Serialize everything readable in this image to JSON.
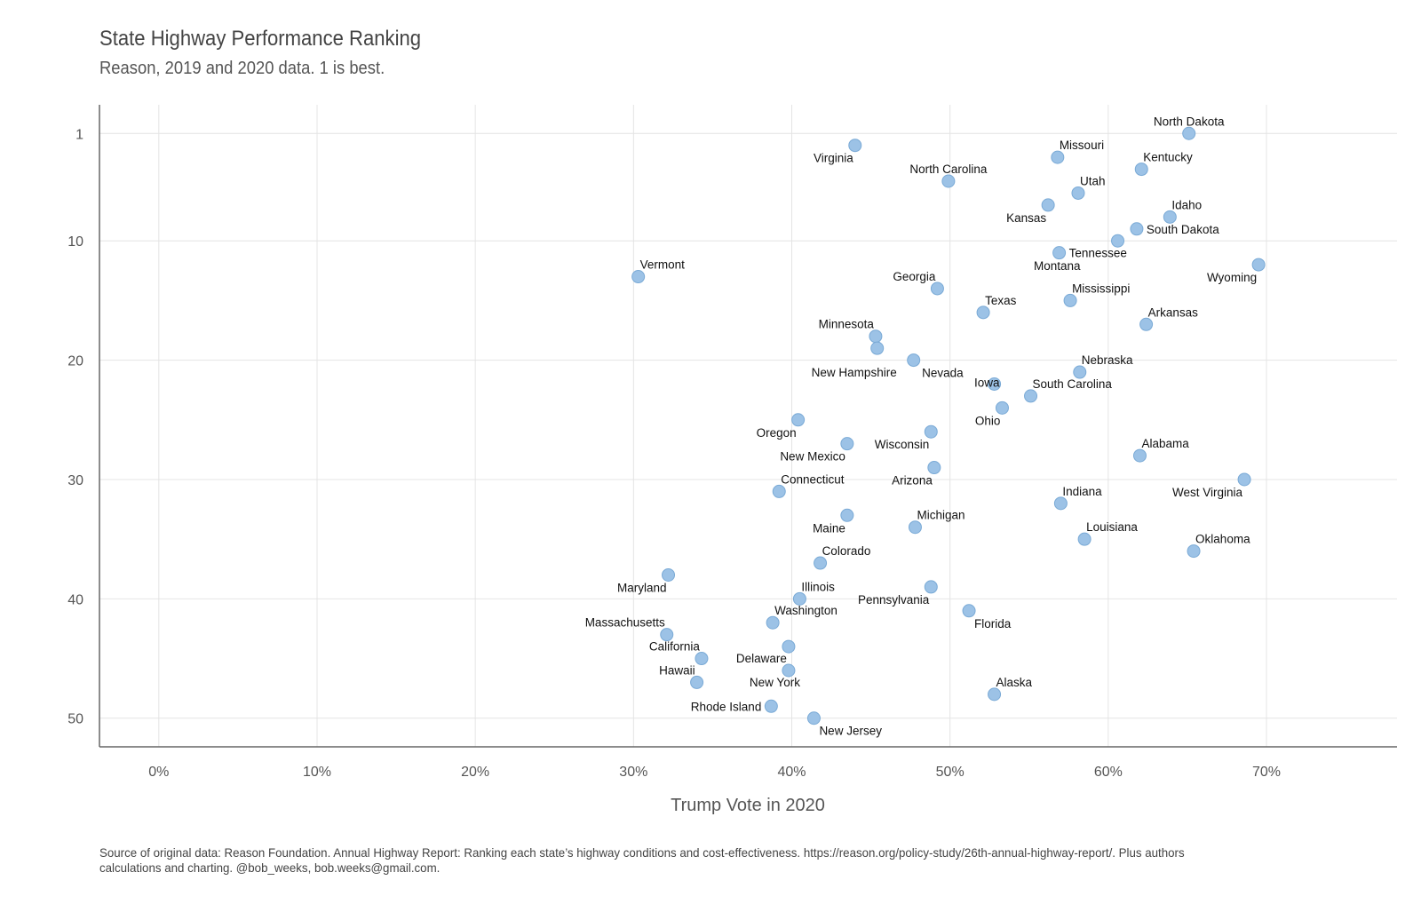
{
  "chart_data": {
    "type": "scatter",
    "title": "State Highway Performance Ranking",
    "subtitle": "Reason, 2019 and 2020 data. 1 is best.",
    "xlabel": "Trump Vote in 2020",
    "ylabel": "",
    "caption": "Source of original data: Reason Foundation. Annual Highway Report: Ranking each state’s highway conditions and cost-effectiveness. https://reason.org/policy-study/26th-annual-highway-report/. Plus authors calculations and charting. @bob_weeks, bob.weeks@gmail.com.",
    "xlim": [
      -0.0375,
      0.7825
    ],
    "ylim": [
      52.4,
      -1.4
    ],
    "x_ticks": [
      0,
      0.1,
      0.2,
      0.3,
      0.4,
      0.5,
      0.6,
      0.7
    ],
    "x_tick_labels": [
      "0%",
      "10%",
      "20%",
      "30%",
      "40%",
      "50%",
      "60%",
      "70%"
    ],
    "y_ticks": [
      1,
      10,
      20,
      30,
      40,
      50
    ],
    "y_tick_labels": [
      "1",
      "10",
      "20",
      "30",
      "40",
      "50"
    ],
    "grid": true,
    "point_color": "#9cc2e6",
    "point_stroke": "#7aaad6",
    "points": [
      {
        "name": "North Dakota",
        "x": 0.651,
        "y": 1,
        "pos": "above"
      },
      {
        "name": "Virginia",
        "x": 0.44,
        "y": 2,
        "pos": "below-left"
      },
      {
        "name": "Missouri",
        "x": 0.568,
        "y": 3,
        "pos": "above-right"
      },
      {
        "name": "Kentucky",
        "x": 0.621,
        "y": 4,
        "pos": "above-right"
      },
      {
        "name": "North Carolina",
        "x": 0.499,
        "y": 5,
        "pos": "above"
      },
      {
        "name": "Utah",
        "x": 0.581,
        "y": 6,
        "pos": "above-right"
      },
      {
        "name": "Kansas",
        "x": 0.562,
        "y": 7,
        "pos": "below-left"
      },
      {
        "name": "Idaho",
        "x": 0.639,
        "y": 8,
        "pos": "above-right"
      },
      {
        "name": "South Dakota",
        "x": 0.618,
        "y": 9,
        "pos": "right"
      },
      {
        "name": "Montana",
        "x": 0.606,
        "y": 10,
        "pos": "far-left"
      },
      {
        "name": "Tennessee",
        "x": 0.569,
        "y": 11,
        "pos": "right"
      },
      {
        "name": "Wyoming",
        "x": 0.695,
        "y": 12,
        "pos": "below-left"
      },
      {
        "name": "Vermont",
        "x": 0.303,
        "y": 13,
        "pos": "above-right"
      },
      {
        "name": "Georgia",
        "x": 0.492,
        "y": 14,
        "pos": "above-left"
      },
      {
        "name": "Mississippi",
        "x": 0.576,
        "y": 15,
        "pos": "above-right"
      },
      {
        "name": "Texas",
        "x": 0.521,
        "y": 16,
        "pos": "above-right"
      },
      {
        "name": "Arkansas",
        "x": 0.624,
        "y": 17,
        "pos": "above-right"
      },
      {
        "name": "Minnesota",
        "x": 0.453,
        "y": 18,
        "pos": "above-left"
      },
      {
        "name": "New Hampshire",
        "x": 0.454,
        "y": 19,
        "pos": "none"
      },
      {
        "name": "Nevada",
        "x": 0.477,
        "y": 20,
        "pos": "nh-nevada"
      },
      {
        "name": "Nebraska",
        "x": 0.582,
        "y": 21,
        "pos": "above-right"
      },
      {
        "name": "Iowa",
        "x": 0.528,
        "y": 22,
        "pos": "left-tight"
      },
      {
        "name": "South Carolina",
        "x": 0.551,
        "y": 23,
        "pos": "above-right"
      },
      {
        "name": "Ohio",
        "x": 0.533,
        "y": 24,
        "pos": "below-left"
      },
      {
        "name": "Oregon",
        "x": 0.404,
        "y": 25,
        "pos": "below-left"
      },
      {
        "name": "Wisconsin",
        "x": 0.488,
        "y": 26,
        "pos": "below-left"
      },
      {
        "name": "New Mexico",
        "x": 0.435,
        "y": 27,
        "pos": "below-left"
      },
      {
        "name": "Alabama",
        "x": 0.62,
        "y": 28,
        "pos": "above-right"
      },
      {
        "name": "Arizona",
        "x": 0.49,
        "y": 29,
        "pos": "below-left"
      },
      {
        "name": "West Virginia",
        "x": 0.686,
        "y": 30,
        "pos": "below-left"
      },
      {
        "name": "Connecticut",
        "x": 0.392,
        "y": 31,
        "pos": "above-right"
      },
      {
        "name": "Indiana",
        "x": 0.57,
        "y": 32,
        "pos": "above-right"
      },
      {
        "name": "Maine",
        "x": 0.435,
        "y": 33,
        "pos": "below-left"
      },
      {
        "name": "Michigan",
        "x": 0.478,
        "y": 34,
        "pos": "above-right"
      },
      {
        "name": "Louisiana",
        "x": 0.585,
        "y": 35,
        "pos": "above-right"
      },
      {
        "name": "Oklahoma",
        "x": 0.654,
        "y": 36,
        "pos": "above-right"
      },
      {
        "name": "Colorado",
        "x": 0.418,
        "y": 37,
        "pos": "above-right"
      },
      {
        "name": "Maryland",
        "x": 0.322,
        "y": 38,
        "pos": "below-left"
      },
      {
        "name": "Pennsylvania",
        "x": 0.488,
        "y": 39,
        "pos": "below-left"
      },
      {
        "name": "Illinois",
        "x": 0.405,
        "y": 40,
        "pos": "above-right"
      },
      {
        "name": "Florida",
        "x": 0.512,
        "y": 41,
        "pos": "below-right"
      },
      {
        "name": "Washington",
        "x": 0.388,
        "y": 42,
        "pos": "above-right"
      },
      {
        "name": "Massachusetts",
        "x": 0.321,
        "y": 43,
        "pos": "above-left"
      },
      {
        "name": "New York",
        "x": 0.398,
        "y": 44,
        "pos": "ny"
      },
      {
        "name": "California",
        "x": 0.343,
        "y": 45,
        "pos": "above-left"
      },
      {
        "name": "Delaware",
        "x": 0.398,
        "y": 46,
        "pos": "above-left"
      },
      {
        "name": "Hawaii",
        "x": 0.34,
        "y": 47,
        "pos": "above-left"
      },
      {
        "name": "Alaska",
        "x": 0.528,
        "y": 48,
        "pos": "above-right"
      },
      {
        "name": "Rhode Island",
        "x": 0.387,
        "y": 49,
        "pos": "left"
      },
      {
        "name": "New Jersey",
        "x": 0.414,
        "y": 50,
        "pos": "below-right"
      }
    ]
  }
}
